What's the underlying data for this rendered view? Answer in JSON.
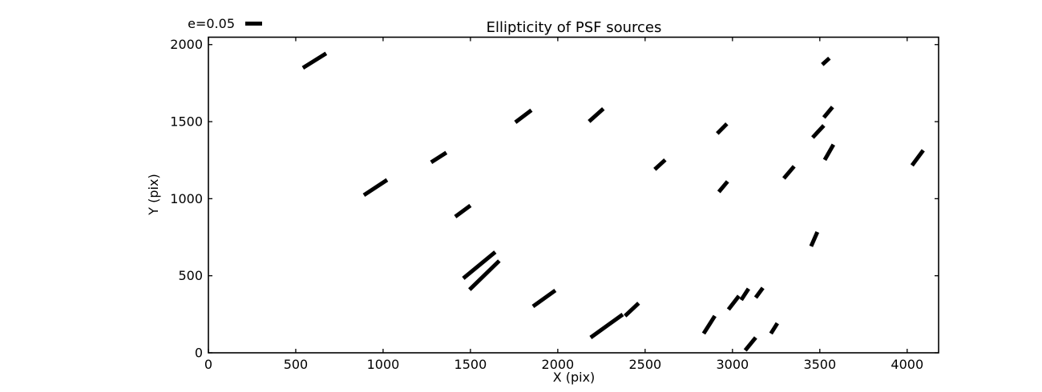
{
  "title": "Ellipticity of PSF sources",
  "legend": {
    "label": "e=0.05"
  },
  "colors": {
    "stick": "#000000",
    "frame": "#000000",
    "background": "#ffffff"
  },
  "chart_data": {
    "type": "scatter",
    "marker": "ellipticity-stick",
    "title": "Ellipticity of PSF sources",
    "xlabel": "X (pix)",
    "ylabel": "Y (pix)",
    "xlim": [
      0,
      4180
    ],
    "ylim": [
      0,
      2048
    ],
    "xticks": [
      0,
      500,
      1000,
      1500,
      2000,
      2500,
      3000,
      3500,
      4000
    ],
    "yticks": [
      0,
      500,
      1000,
      1500,
      2000
    ],
    "grid": false,
    "legend": {
      "label": "e=0.05",
      "position": "upper-left-outside",
      "scale_e": 0.05
    },
    "segments": [
      [
        541,
        1849,
        674,
        1943
      ],
      [
        1757,
        1496,
        1849,
        1574
      ],
      [
        2179,
        1501,
        2261,
        1584
      ],
      [
        3514,
        1870,
        3555,
        1912
      ],
      [
        3523,
        1527,
        3573,
        1595
      ],
      [
        3459,
        1397,
        3523,
        1475
      ],
      [
        3528,
        1252,
        3578,
        1351
      ],
      [
        2913,
        1423,
        2968,
        1486
      ],
      [
        2922,
        1044,
        2972,
        1112
      ],
      [
        3294,
        1132,
        3353,
        1210
      ],
      [
        2555,
        1190,
        2615,
        1252
      ],
      [
        4028,
        1216,
        4092,
        1314
      ],
      [
        1275,
        1236,
        1362,
        1299
      ],
      [
        890,
        1023,
        1023,
        1122
      ],
      [
        1413,
        883,
        1500,
        956
      ],
      [
        3450,
        691,
        3486,
        784
      ],
      [
        1459,
        483,
        1642,
        654
      ],
      [
        1495,
        410,
        1665,
        597
      ],
      [
        1858,
        301,
        1986,
        405
      ],
      [
        2188,
        99,
        2372,
        249
      ],
      [
        2385,
        239,
        2463,
        322
      ],
      [
        2835,
        125,
        2899,
        239
      ],
      [
        2977,
        281,
        3037,
        369
      ],
      [
        3050,
        343,
        3092,
        416
      ],
      [
        3133,
        358,
        3174,
        421
      ],
      [
        3220,
        125,
        3257,
        192
      ],
      [
        3073,
        16,
        3133,
        99
      ]
    ]
  }
}
